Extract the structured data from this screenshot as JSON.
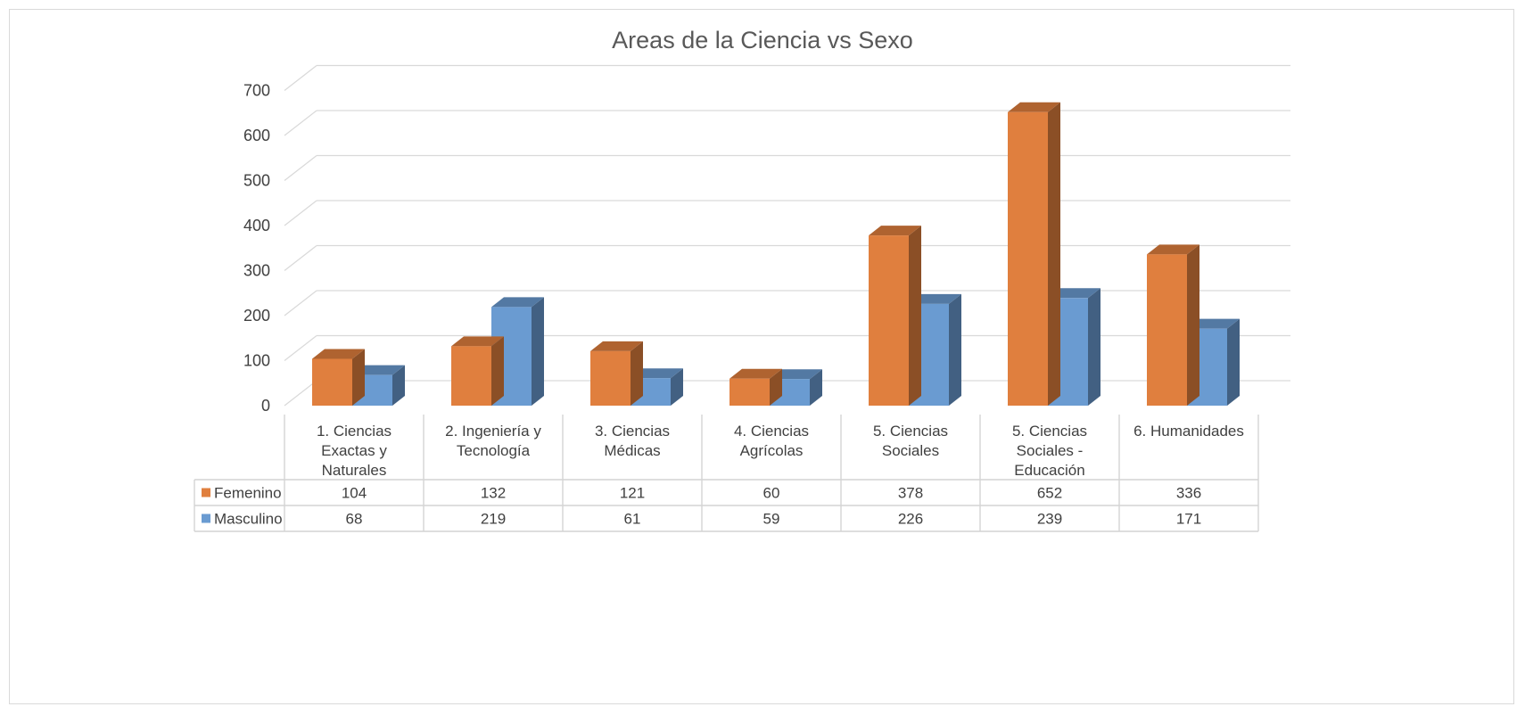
{
  "chart_data": {
    "type": "bar",
    "title": "Areas de la Ciencia vs Sexo",
    "categories": [
      [
        "1. Ciencias",
        "Exactas y",
        "Naturales"
      ],
      [
        "2. Ingeniería y",
        "Tecnología"
      ],
      [
        "3. Ciencias",
        "Médicas"
      ],
      [
        "4. Ciencias",
        "Agrícolas"
      ],
      [
        "5. Ciencias",
        "Sociales"
      ],
      [
        "5. Ciencias",
        "Sociales -",
        "Educación"
      ],
      [
        "6. Humanidades"
      ]
    ],
    "series": [
      {
        "name": "Femenino",
        "values": [
          104,
          132,
          121,
          60,
          378,
          652,
          336
        ],
        "color": "#E07F3E"
      },
      {
        "name": "Masculino",
        "values": [
          68,
          219,
          61,
          59,
          226,
          239,
          171
        ],
        "color": "#6A9BD1"
      }
    ],
    "ylim": [
      0,
      700
    ],
    "yticks": [
      0,
      100,
      200,
      300,
      400,
      500,
      600,
      700
    ],
    "grid": true,
    "style": "3d-clustered-column",
    "data_table": true
  }
}
